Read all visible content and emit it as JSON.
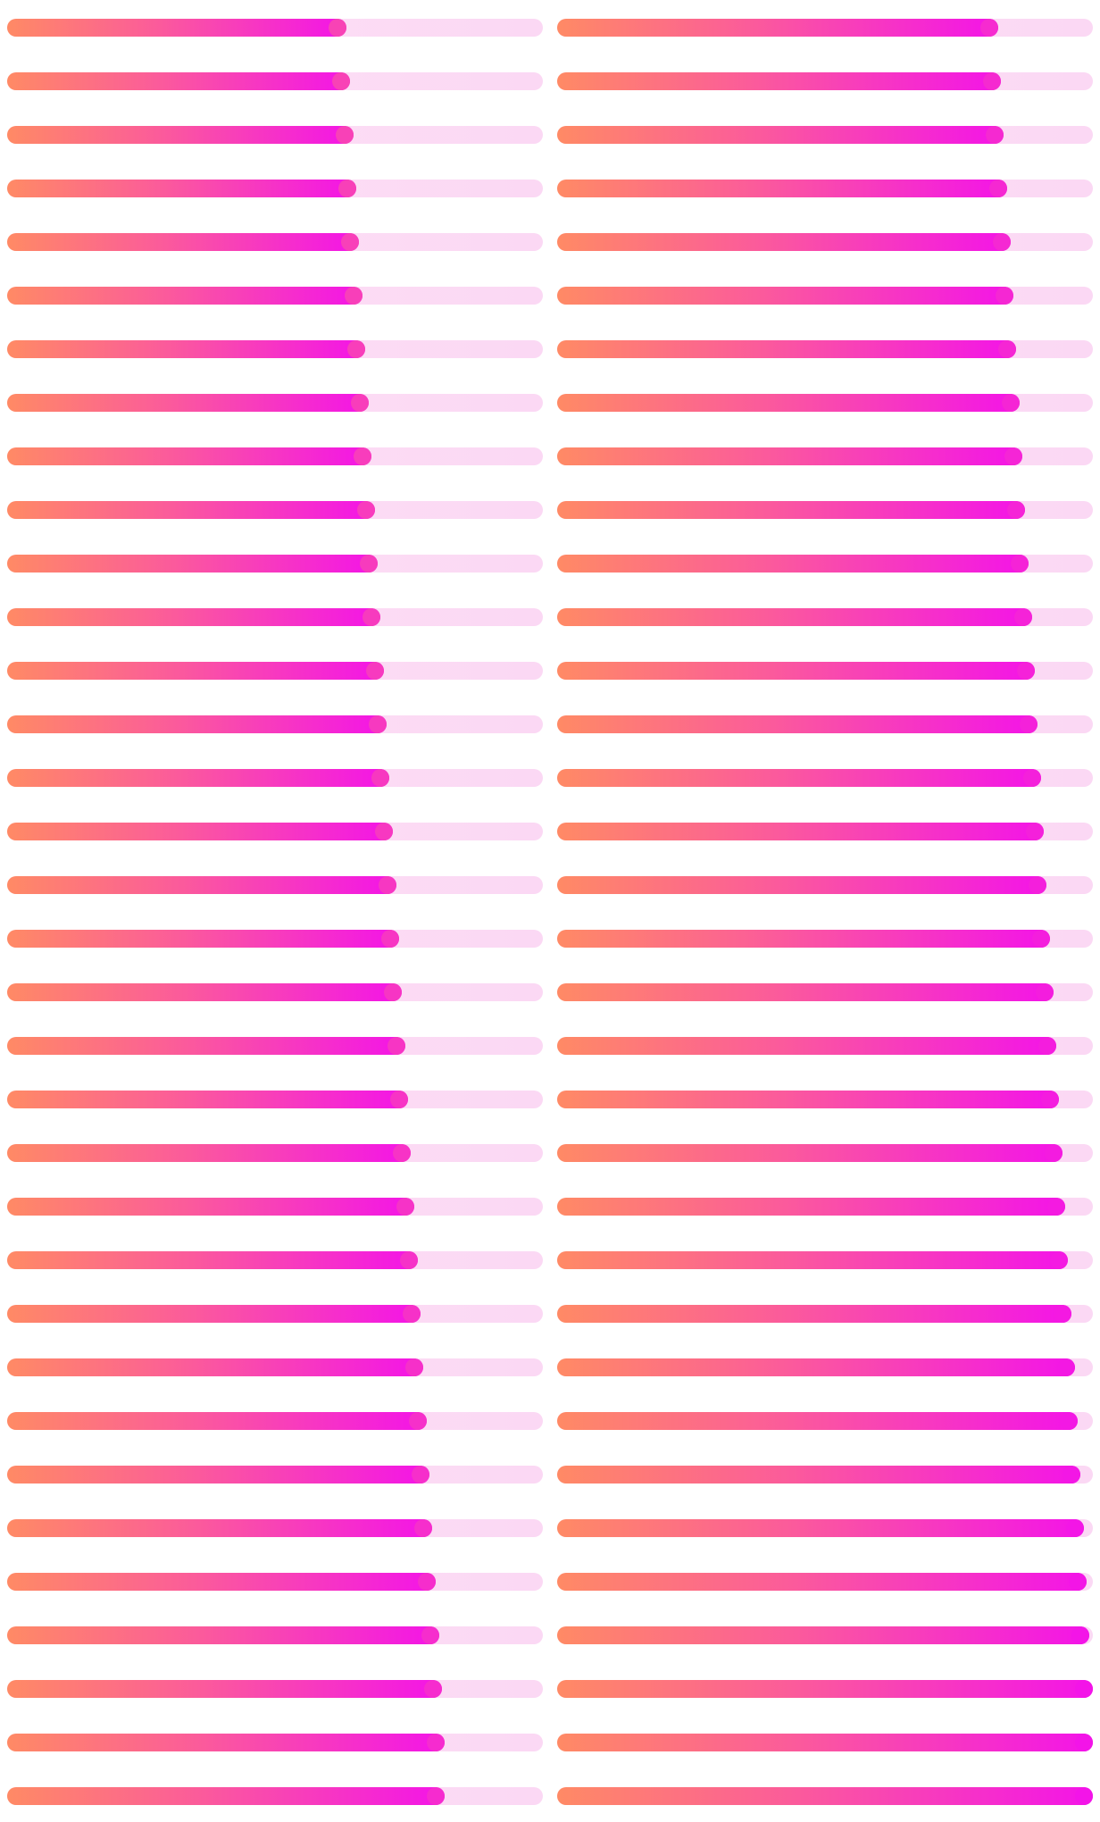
{
  "colors": {
    "track": "#fde2f6",
    "fill_start": "#ff8a65",
    "fill_mid": "#fb5a9c",
    "fill_end": "#f314e8",
    "background": "#ffffff"
  },
  "columns": [
    {
      "name": "left",
      "progress_values": [
        0.634,
        0.64,
        0.646,
        0.651,
        0.657,
        0.663,
        0.669,
        0.675,
        0.68,
        0.686,
        0.692,
        0.697,
        0.703,
        0.709,
        0.714,
        0.72,
        0.726,
        0.731,
        0.737,
        0.743,
        0.748,
        0.754,
        0.76,
        0.766,
        0.771,
        0.777,
        0.783,
        0.789,
        0.794,
        0.8,
        0.806,
        0.811,
        0.817,
        0.817
      ]
    },
    {
      "name": "right",
      "progress_values": [
        0.823,
        0.829,
        0.834,
        0.84,
        0.846,
        0.851,
        0.857,
        0.863,
        0.869,
        0.874,
        0.88,
        0.886,
        0.891,
        0.897,
        0.903,
        0.909,
        0.914,
        0.92,
        0.926,
        0.931,
        0.937,
        0.943,
        0.949,
        0.954,
        0.96,
        0.966,
        0.971,
        0.977,
        0.983,
        0.989,
        0.994,
        1.0,
        1.0,
        1.0
      ]
    }
  ]
}
